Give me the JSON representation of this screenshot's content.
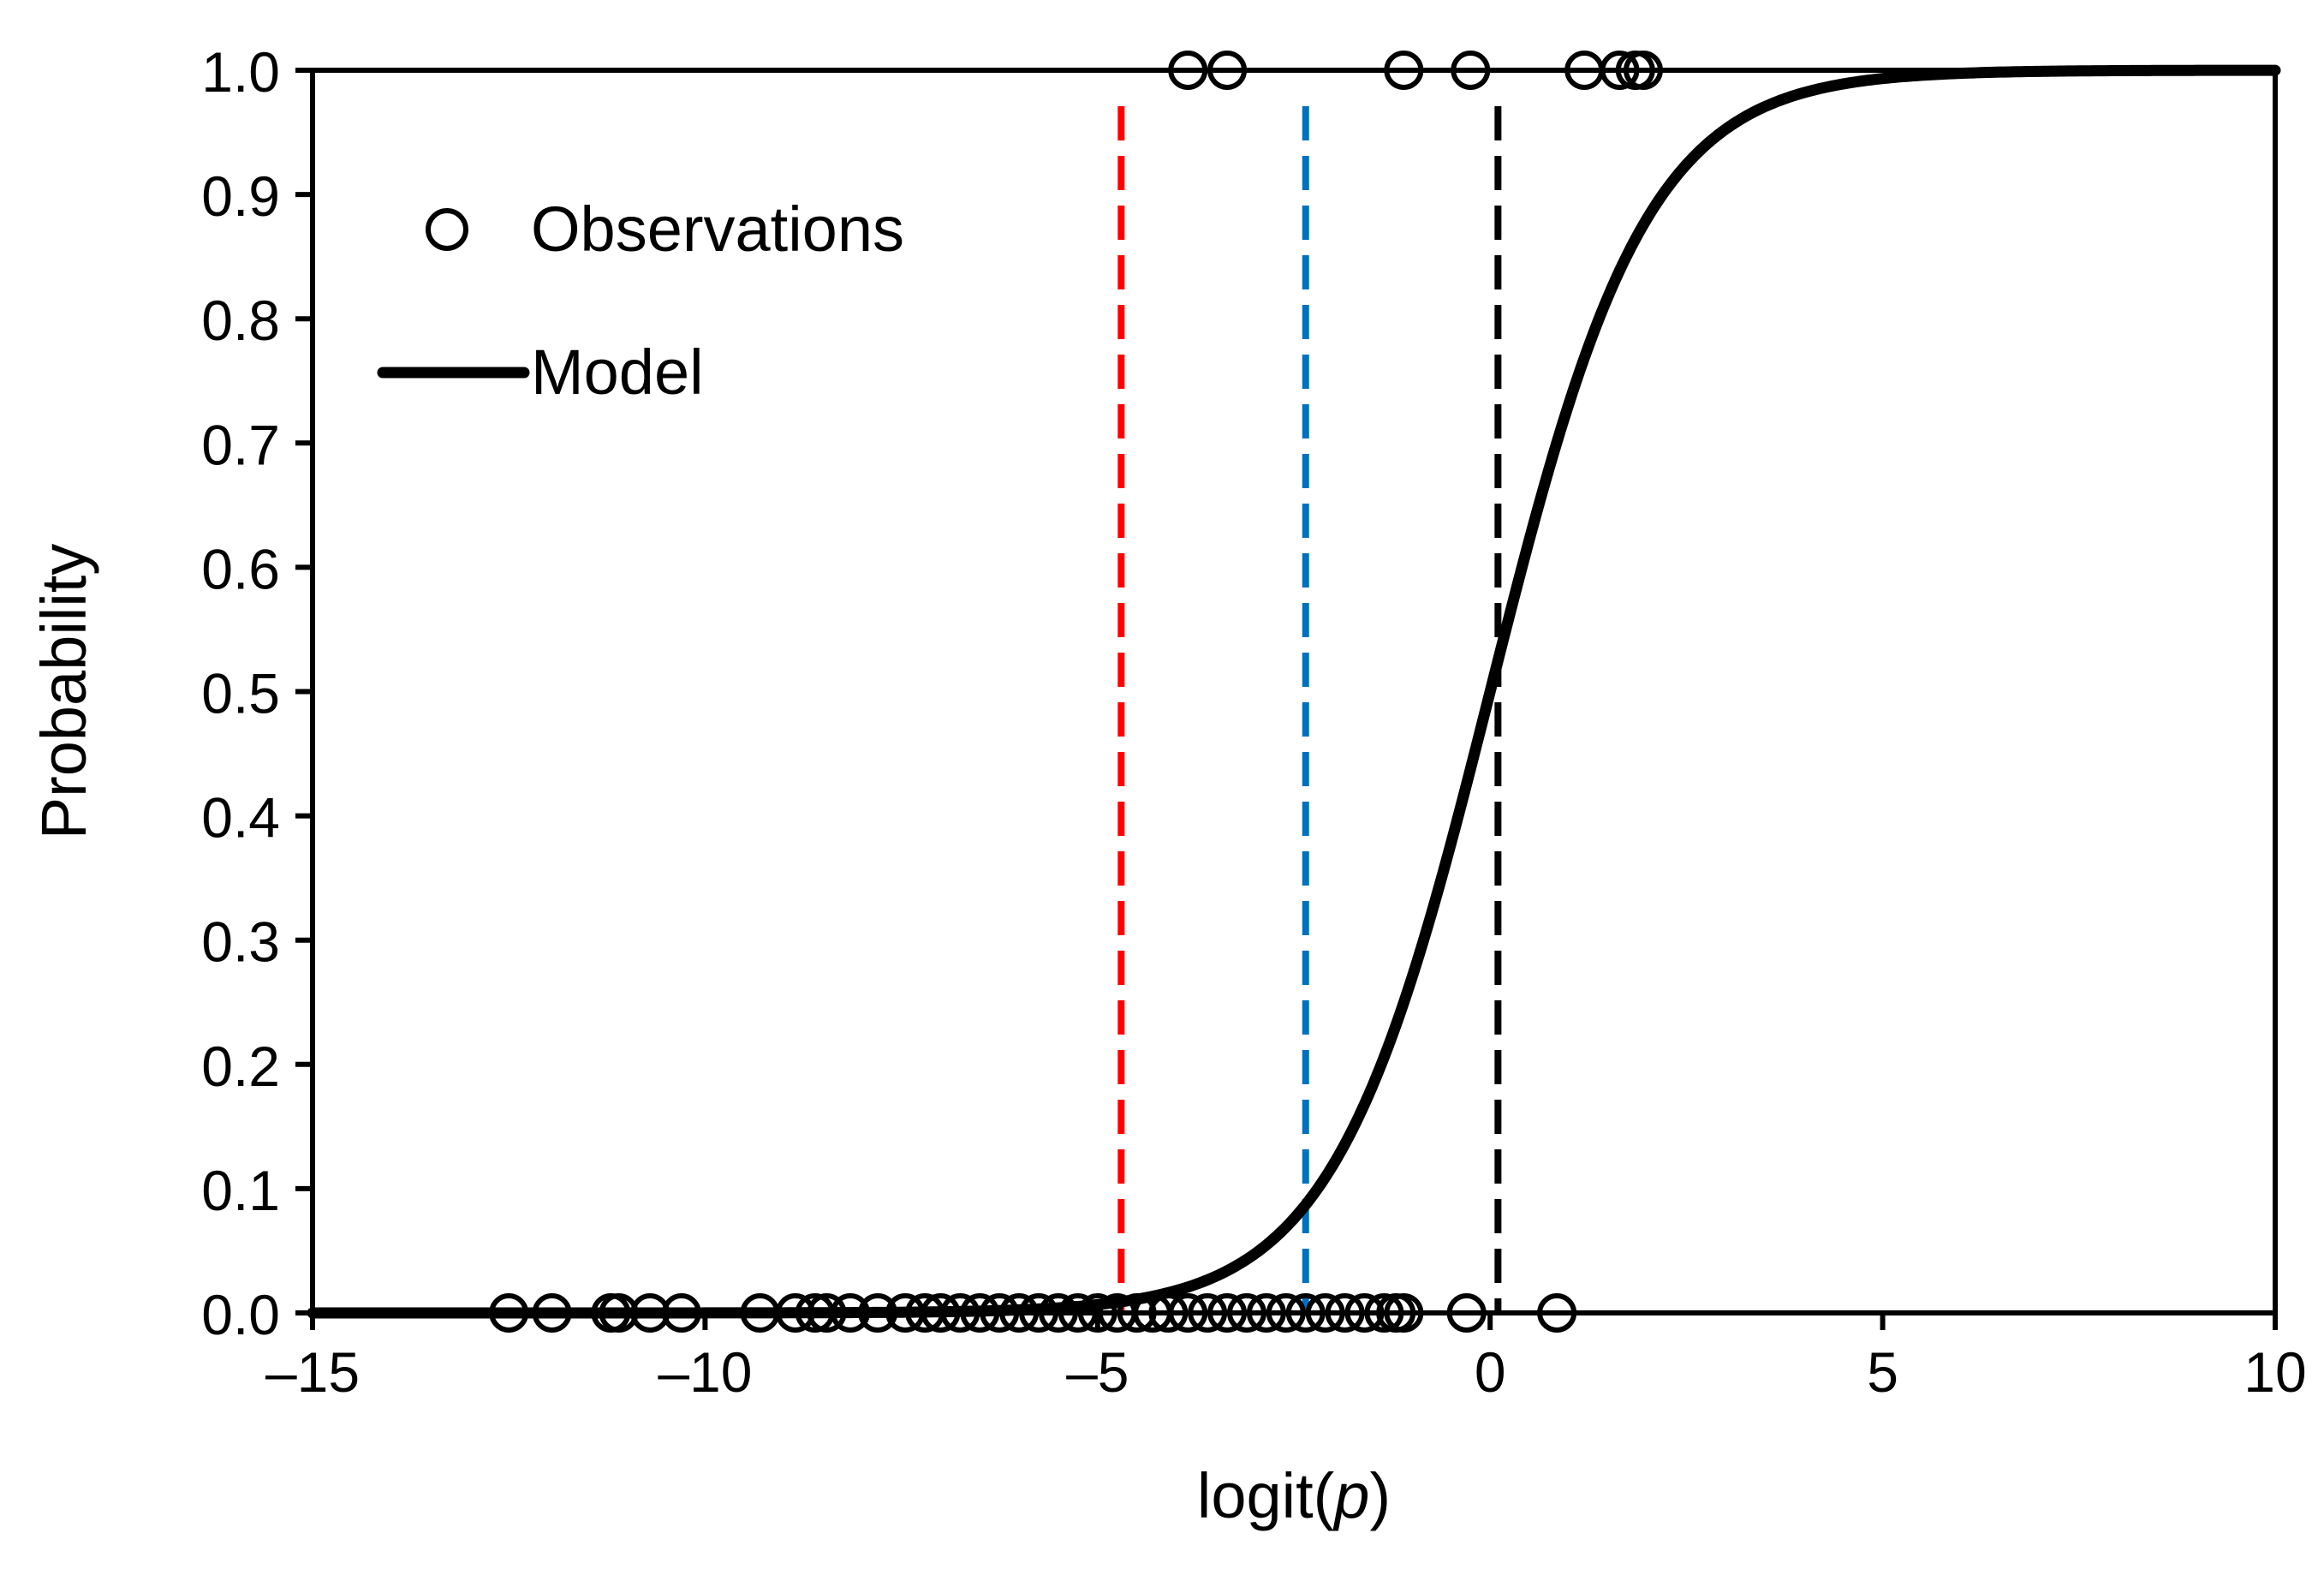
{
  "chart_data": {
    "type": "scatter",
    "xlabel": "logit(",
    "xlabel_italic": "p",
    "xlabel_close": ")",
    "ylabel": "Probability",
    "xlim": [
      -15,
      10
    ],
    "ylim": [
      0,
      1
    ],
    "x_ticks": [
      -15,
      -10,
      -5,
      0,
      5,
      10
    ],
    "x_tick_labels": [
      "–15",
      "–10",
      "–5",
      "0",
      "5",
      "10"
    ],
    "y_ticks": [
      0,
      0.1,
      0.2,
      0.3,
      0.4,
      0.5,
      0.6,
      0.7,
      0.8,
      0.9,
      1.0
    ],
    "y_tick_labels": [
      "0.0",
      "0.1",
      "0.2",
      "0.3",
      "0.4",
      "0.5",
      "0.6",
      "0.7",
      "0.8",
      "0.9",
      "1.0"
    ],
    "grid": false,
    "legend": {
      "placement": "top-left",
      "items": [
        {
          "label": "Observations",
          "marker": "open-circle"
        },
        {
          "label": "Model",
          "marker": "line"
        }
      ]
    },
    "series": [
      {
        "name": "Observations",
        "kind": "scatter",
        "color": "#000000",
        "points": [
          {
            "x": -3.85,
            "y": 1
          },
          {
            "x": -3.35,
            "y": 1
          },
          {
            "x": -1.1,
            "y": 1
          },
          {
            "x": -0.25,
            "y": 1
          },
          {
            "x": 1.2,
            "y": 1
          },
          {
            "x": 1.65,
            "y": 1
          },
          {
            "x": 1.85,
            "y": 1
          },
          {
            "x": 1.95,
            "y": 1
          },
          {
            "x": -12.5,
            "y": 0
          },
          {
            "x": -11.95,
            "y": 0
          },
          {
            "x": -11.2,
            "y": 0
          },
          {
            "x": -11.1,
            "y": 0
          },
          {
            "x": -10.7,
            "y": 0
          },
          {
            "x": -10.3,
            "y": 0
          },
          {
            "x": -9.3,
            "y": 0
          },
          {
            "x": -8.85,
            "y": 0
          },
          {
            "x": -8.6,
            "y": 0
          },
          {
            "x": -8.45,
            "y": 0
          },
          {
            "x": -8.15,
            "y": 0
          },
          {
            "x": -7.8,
            "y": 0
          },
          {
            "x": -7.45,
            "y": 0
          },
          {
            "x": -7.2,
            "y": 0
          },
          {
            "x": -7.0,
            "y": 0
          },
          {
            "x": -6.75,
            "y": 0
          },
          {
            "x": -6.5,
            "y": 0
          },
          {
            "x": -6.25,
            "y": 0
          },
          {
            "x": -6.0,
            "y": 0
          },
          {
            "x": -5.75,
            "y": 0
          },
          {
            "x": -5.5,
            "y": 0
          },
          {
            "x": -5.25,
            "y": 0
          },
          {
            "x": -5.0,
            "y": 0
          },
          {
            "x": -4.75,
            "y": 0
          },
          {
            "x": -4.5,
            "y": 0
          },
          {
            "x": -4.3,
            "y": 0
          },
          {
            "x": -4.1,
            "y": 0
          },
          {
            "x": -3.85,
            "y": 0
          },
          {
            "x": -3.6,
            "y": 0
          },
          {
            "x": -3.35,
            "y": 0
          },
          {
            "x": -3.1,
            "y": 0
          },
          {
            "x": -2.85,
            "y": 0
          },
          {
            "x": -2.6,
            "y": 0
          },
          {
            "x": -2.35,
            "y": 0
          },
          {
            "x": -2.1,
            "y": 0
          },
          {
            "x": -1.85,
            "y": 0
          },
          {
            "x": -1.6,
            "y": 0
          },
          {
            "x": -1.35,
            "y": 0
          },
          {
            "x": -1.2,
            "y": 0
          },
          {
            "x": -1.1,
            "y": 0
          },
          {
            "x": -0.3,
            "y": 0
          },
          {
            "x": 0.85,
            "y": 0
          }
        ]
      },
      {
        "name": "Model",
        "kind": "logistic-curve",
        "color": "#000000",
        "center": 0,
        "scale": 1
      }
    ],
    "reference_lines": [
      {
        "x": -4.7,
        "color": "#ff0000",
        "style": "dashed"
      },
      {
        "x": -2.35,
        "color": "#0070c0",
        "style": "dashed"
      },
      {
        "x": 0.1,
        "color": "#000000",
        "style": "dashed"
      }
    ]
  }
}
